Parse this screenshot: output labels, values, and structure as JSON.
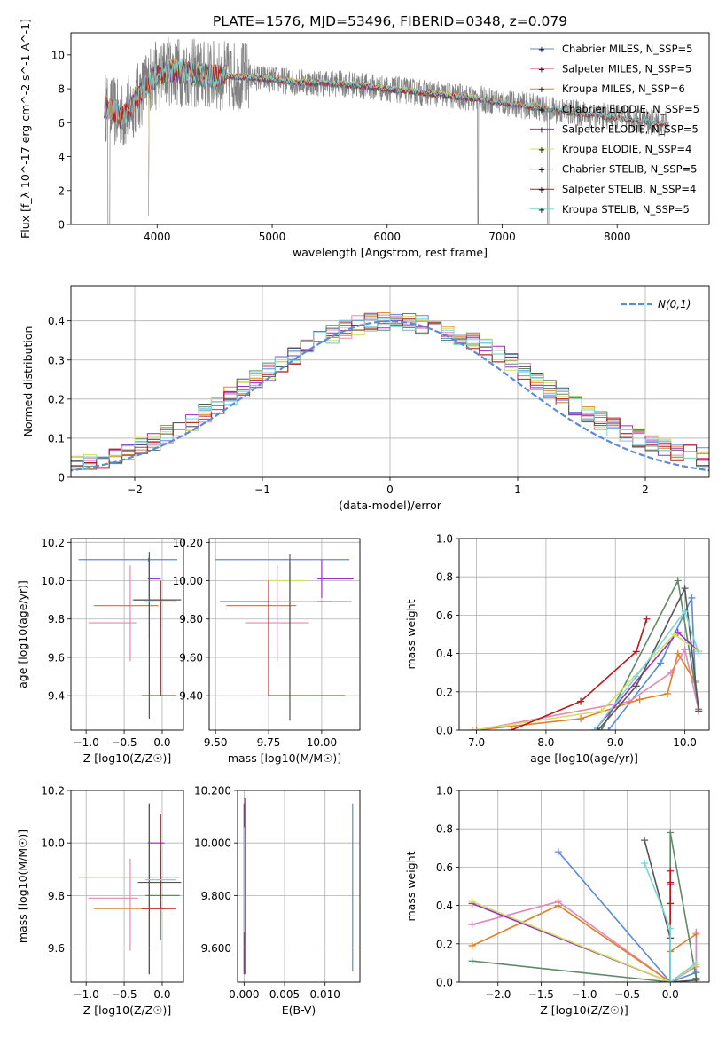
{
  "figure_title": "PLATE=1576, MJD=53496, FIBERID=0348, z=0.079",
  "colors": {
    "Chabrier MILES": "#5b8bd9",
    "Salpeter MILES": "#e487b9",
    "Kroupa MILES": "#e0812a",
    "Chabrier ELODIE": "#5e8a6a",
    "Salpeter ELODIE": "#9a2fc0",
    "Kroupa ELODIE": "#cfe060",
    "Chabrier STELIB": "#555555",
    "Salpeter STELIB": "#b51b1b",
    "Kroupa STELIB": "#7ad6d6",
    "data": "#808080",
    "normal": "#5b8bd9"
  },
  "chart_data": [
    {
      "id": "spectrum",
      "type": "line",
      "title": "PLATE=1576, MJD=53496, FIBERID=0348, z=0.079",
      "xlabel": "wavelength [Angstrom, rest frame]",
      "ylabel": "Flux [f_λ 10^-17 erg cm^-2 s^-1 A^-1]",
      "xlim": [
        3250,
        8800
      ],
      "ylim": [
        0,
        11.3
      ],
      "xticks": [
        4000,
        5000,
        6000,
        7000,
        8000
      ],
      "yticks": [
        0,
        2,
        4,
        6,
        8,
        10
      ],
      "grid": false,
      "legend": "top-right",
      "legend_entries": [
        "Chabrier MILES, N_SSP=5",
        "Salpeter MILES, N_SSP=5",
        "Kroupa MILES, N_SSP=6",
        "Chabrier ELODIE, N_SSP=5",
        "Salpeter ELODIE, N_SSP=5",
        "Kroupa ELODIE, N_SSP=4",
        "Chabrier STELIB, N_SSP=5",
        "Salpeter STELIB, N_SSP=4",
        "Kroupa STELIB, N_SSP=5"
      ],
      "model_ranges": {
        "MILES": [
          3540,
          7410
        ],
        "ELODIE": [
          3900,
          6800
        ],
        "STELIB": [
          3540,
          8450
        ]
      },
      "continuum_anchors": {
        "x": [
          3540,
          3700,
          3800,
          3950,
          4100,
          4400,
          4800,
          5200,
          5600,
          6000,
          6400,
          6800,
          7200,
          7600,
          8000,
          8450
        ],
        "y": [
          7.0,
          6.3,
          7.2,
          8.6,
          9.1,
          8.8,
          8.7,
          8.4,
          8.3,
          8.0,
          7.7,
          7.4,
          7.0,
          6.6,
          6.3,
          5.9
        ]
      }
    },
    {
      "id": "residuals",
      "type": "histogram",
      "xlabel": "(data-model)/error",
      "ylabel": "Normed distribution",
      "xlim": [
        -2.5,
        2.5
      ],
      "ylim": [
        0,
        0.49
      ],
      "xticks": [
        -2,
        -1,
        0,
        1,
        2
      ],
      "yticks": [
        0.0,
        0.1,
        0.2,
        0.3,
        0.4
      ],
      "grid": true,
      "legend": "top-right",
      "legend_entries": [
        "N(0,1)"
      ],
      "bin_width": 0.1,
      "reference_curve": {
        "name": "N(0,1)",
        "mean": 0,
        "sigma": 1
      }
    },
    {
      "id": "age-vs-Z",
      "type": "errorbar",
      "xlabel": "Z [log10(Z/Z☉)]",
      "ylabel": "age [log10(age/yr)]",
      "xlim": [
        -1.2,
        0.28
      ],
      "ylim": [
        9.22,
        10.22
      ],
      "xticks": [
        -1.0,
        -0.5,
        0.0
      ],
      "yticks": [
        9.4,
        9.6,
        9.8,
        10.0,
        10.2
      ],
      "grid": true,
      "points": [
        {
          "model": "Chabrier MILES",
          "x": -0.18,
          "xerr": [
            0.92,
            0.38
          ],
          "y": 10.11,
          "yerr": [
            0.01,
            0.01
          ]
        },
        {
          "model": "Salpeter MILES",
          "x": -0.42,
          "xerr": [
            0.55,
            0.08
          ],
          "y": 9.78,
          "yerr": [
            0.2,
            0.3
          ]
        },
        {
          "model": "Kroupa MILES",
          "x": -0.15,
          "xerr": [
            0.75,
            0.1
          ],
          "y": 9.87,
          "yerr": [
            0.0,
            0.0
          ]
        },
        {
          "model": "Chabrier ELODIE",
          "x": -0.17,
          "xerr": [
            0.22,
            0.35
          ],
          "y": 9.9,
          "yerr": [
            0.2,
            0.2
          ]
        },
        {
          "model": "Salpeter ELODIE",
          "x": -0.17,
          "xerr": [
            0.02,
            0.15
          ],
          "y": 10.01,
          "yerr": [
            0.1,
            0.1
          ]
        },
        {
          "model": "Kroupa ELODIE",
          "x": -0.17,
          "xerr": [
            0.02,
            0.02
          ],
          "y": 10.0,
          "yerr": [
            0.0,
            0.0
          ]
        },
        {
          "model": "Chabrier STELIB",
          "x": -0.17,
          "xerr": [
            0.2,
            0.42
          ],
          "y": 9.9,
          "yerr": [
            0.62,
            0.25
          ]
        },
        {
          "model": "Salpeter STELIB",
          "x": -0.02,
          "xerr": [
            0.25,
            0.2
          ],
          "y": 9.4,
          "yerr": [
            0.0,
            0.6
          ]
        },
        {
          "model": "Kroupa STELIB",
          "x": -0.07,
          "xerr": [
            0.17,
            0.25
          ],
          "y": 9.89,
          "yerr": [
            0.0,
            0.0
          ]
        }
      ]
    },
    {
      "id": "age-vs-mass",
      "type": "errorbar",
      "xlabel": "mass [log10(M/M☉)]",
      "ylabel": "",
      "xlim": [
        9.47,
        10.18
      ],
      "ylim": [
        9.22,
        10.22
      ],
      "xticks": [
        9.5,
        9.75,
        10.0
      ],
      "yticks": [
        9.4,
        9.6,
        9.8,
        10.0,
        10.2
      ],
      "grid": true,
      "points": [
        {
          "model": "Chabrier MILES",
          "x": 9.86,
          "xerr": [
            0.36,
            0.27
          ],
          "y": 10.11,
          "yerr": [
            0.0,
            0.0
          ]
        },
        {
          "model": "Salpeter MILES",
          "x": 9.79,
          "xerr": [
            0.15,
            0.15
          ],
          "y": 9.78,
          "yerr": [
            0.2,
            0.3
          ]
        },
        {
          "model": "Kroupa MILES",
          "x": 9.75,
          "xerr": [
            0.2,
            0.13
          ],
          "y": 9.87,
          "yerr": [
            0.0,
            0.0
          ]
        },
        {
          "model": "Chabrier ELODIE",
          "x": 9.85,
          "xerr": [
            0.33,
            0.2
          ],
          "y": 9.89,
          "yerr": [
            0.2,
            0.2
          ]
        },
        {
          "model": "Salpeter ELODIE",
          "x": 10.0,
          "xerr": [
            0.02,
            0.15
          ],
          "y": 10.01,
          "yerr": [
            0.1,
            0.1
          ]
        },
        {
          "model": "Kroupa ELODIE",
          "x": 9.85,
          "xerr": [
            0.1,
            0.08
          ],
          "y": 10.0,
          "yerr": [
            0.0,
            0.0
          ]
        },
        {
          "model": "Chabrier STELIB",
          "x": 9.85,
          "xerr": [
            0.33,
            0.29
          ],
          "y": 9.89,
          "yerr": [
            0.62,
            0.25
          ]
        },
        {
          "model": "Salpeter STELIB",
          "x": 9.75,
          "xerr": [
            0.0,
            0.36
          ],
          "y": 9.4,
          "yerr": [
            0.0,
            0.6
          ]
        },
        {
          "model": "Kroupa STELIB",
          "x": 9.85,
          "xerr": [
            0.1,
            0.13
          ],
          "y": 9.89,
          "yerr": [
            0.0,
            0.0
          ]
        }
      ]
    },
    {
      "id": "weight-vs-age",
      "type": "line",
      "xlabel": "age [log10(age/yr)]",
      "ylabel": "mass weight",
      "xlim": [
        6.75,
        10.35
      ],
      "ylim": [
        0,
        1.0
      ],
      "xticks": [
        7,
        8,
        9,
        10
      ],
      "yticks": [
        0.0,
        0.2,
        0.4,
        0.6,
        0.8,
        1.0
      ],
      "grid": true,
      "series": [
        {
          "model": "Chabrier MILES",
          "x": [
            8.9,
            9.65,
            10.1,
            10.15
          ],
          "y": [
            0.0,
            0.35,
            0.69,
            0.26
          ]
        },
        {
          "model": "Salpeter MILES",
          "x": [
            7.0,
            9.2,
            9.8,
            10.0,
            10.2
          ],
          "y": [
            0.0,
            0.15,
            0.3,
            0.42,
            0.1
          ]
        },
        {
          "model": "Kroupa MILES",
          "x": [
            7.0,
            8.5,
            9.35,
            9.75,
            9.9,
            10.15
          ],
          "y": [
            0.0,
            0.06,
            0.16,
            0.19,
            0.4,
            0.25
          ]
        },
        {
          "model": "Chabrier ELODIE",
          "x": [
            8.8,
            9.9,
            10.2
          ],
          "y": [
            0.0,
            0.78,
            0.11
          ]
        },
        {
          "model": "Salpeter ELODIE",
          "x": [
            8.7,
            9.9,
            10.2
          ],
          "y": [
            0.0,
            0.51,
            0.41
          ]
        },
        {
          "model": "Kroupa ELODIE",
          "x": [
            6.95,
            8.8,
            9.85,
            10.2
          ],
          "y": [
            0.0,
            0.1,
            0.5,
            0.41
          ]
        },
        {
          "model": "Chabrier STELIB",
          "x": [
            8.75,
            9.3,
            10.0,
            10.2
          ],
          "y": [
            0.0,
            0.23,
            0.74,
            0.1
          ]
        },
        {
          "model": "Salpeter STELIB",
          "x": [
            7.5,
            8.5,
            9.3,
            9.45
          ],
          "y": [
            0.0,
            0.15,
            0.41,
            0.58
          ]
        },
        {
          "model": "Kroupa STELIB",
          "x": [
            8.7,
            9.3,
            10.0,
            10.2
          ],
          "y": [
            0.0,
            0.28,
            0.62,
            0.4
          ]
        }
      ]
    },
    {
      "id": "mass-vs-Z",
      "type": "errorbar",
      "xlabel": "Z [log10(Z/Z☉)]",
      "ylabel": "mass [log10(M/M☉)]",
      "xlim": [
        -1.2,
        0.28
      ],
      "ylim": [
        9.47,
        10.2
      ],
      "xticks": [
        -1.0,
        -0.5,
        0.0
      ],
      "yticks": [
        9.6,
        9.8,
        10.0,
        10.2
      ],
      "grid": true,
      "points": [
        {
          "model": "Chabrier MILES",
          "x": -0.18,
          "xerr": [
            0.92,
            0.4
          ],
          "y": 9.87,
          "yerr": [
            0.0,
            0.0
          ]
        },
        {
          "model": "Salpeter MILES",
          "x": -0.42,
          "xerr": [
            0.55,
            0.1
          ],
          "y": 9.79,
          "yerr": [
            0.2,
            0.15
          ]
        },
        {
          "model": "Kroupa MILES",
          "x": -0.15,
          "xerr": [
            0.75,
            0.2
          ],
          "y": 9.75,
          "yerr": [
            0.0,
            0.0
          ]
        },
        {
          "model": "Chabrier ELODIE",
          "x": -0.02,
          "xerr": [
            0.2,
            0.25
          ],
          "y": 9.8,
          "yerr": [
            0.17,
            0.17
          ]
        },
        {
          "model": "Salpeter ELODIE",
          "x": -0.17,
          "xerr": [
            0.02,
            0.2
          ],
          "y": 10.0,
          "yerr": [
            0.5,
            0.15
          ]
        },
        {
          "model": "Kroupa ELODIE",
          "x": -0.14,
          "xerr": [
            0.05,
            0.1
          ],
          "y": 9.85,
          "yerr": [
            0.0,
            0.0
          ]
        },
        {
          "model": "Chabrier STELIB",
          "x": -0.17,
          "xerr": [
            0.15,
            0.42
          ],
          "y": 9.85,
          "yerr": [
            0.35,
            0.3
          ]
        },
        {
          "model": "Salpeter STELIB",
          "x": -0.02,
          "xerr": [
            0.25,
            0.2
          ],
          "y": 9.75,
          "yerr": [
            0.0,
            0.36
          ]
        },
        {
          "model": "Kroupa STELIB",
          "x": -0.07,
          "xerr": [
            0.15,
            0.25
          ],
          "y": 9.86,
          "yerr": [
            0.0,
            0.0
          ]
        }
      ]
    },
    {
      "id": "mass-vs-EBV",
      "type": "errorbar",
      "xlabel": "E(B-V)",
      "ylabel": "",
      "xlim": [
        -0.0008,
        0.0143
      ],
      "ylim": [
        9.47,
        10.2
      ],
      "xticks": [
        0.0,
        0.005,
        0.01
      ],
      "yticks": [
        9.6,
        9.8,
        10.0,
        10.2
      ],
      "grid": true,
      "points": [
        {
          "model": "Chabrier MILES",
          "x": 0.0134,
          "xerr": [
            0,
            0
          ],
          "y": 9.83,
          "yerr": [
            0.32,
            0.32
          ]
        },
        {
          "model": "Salpeter ELODIE",
          "x": 0.0001,
          "xerr": [
            0,
            0
          ],
          "y": 9.84,
          "yerr": [
            0.34,
            0.33
          ]
        },
        {
          "model": "Chabrier STELIB",
          "x": 0.0,
          "xerr": [
            0,
            0
          ],
          "y": 9.85,
          "yerr": [
            0.35,
            0.3
          ]
        },
        {
          "model": "Kroupa STELIB",
          "x": 0.0,
          "xerr": [
            0,
            0
          ],
          "y": 9.86,
          "yerr": [
            0.2,
            0.2
          ]
        }
      ]
    },
    {
      "id": "weight-vs-Z",
      "type": "line",
      "xlabel": "Z [log10(Z/Z☉)]",
      "ylabel": "mass weight",
      "xlim": [
        -2.45,
        0.45
      ],
      "ylim": [
        0,
        1.0
      ],
      "xticks": [
        -2.0,
        -1.5,
        -1.0,
        -0.5,
        0.0
      ],
      "yticks": [
        0.0,
        0.2,
        0.4,
        0.6,
        0.8,
        1.0
      ],
      "grid": true,
      "series": [
        {
          "model": "Chabrier MILES",
          "x": [
            -1.3,
            0.0,
            0.3,
            0.3
          ],
          "y": [
            0.68,
            0.0,
            0.05,
            0.26
          ]
        },
        {
          "model": "Salpeter MILES",
          "x": [
            -2.3,
            -1.3,
            0.0,
            0.3,
            0.3
          ],
          "y": [
            0.3,
            0.42,
            0.0,
            0.08,
            0.26
          ]
        },
        {
          "model": "Kroupa MILES",
          "x": [
            -2.3,
            -1.3,
            0.0,
            0.0,
            0.3
          ],
          "y": [
            0.19,
            0.4,
            0.0,
            0.16,
            0.25
          ]
        },
        {
          "model": "Chabrier ELODIE",
          "x": [
            -2.3,
            0.0,
            0.0,
            0.3
          ],
          "y": [
            0.11,
            0.0,
            0.78,
            0.02
          ]
        },
        {
          "model": "Salpeter ELODIE",
          "x": [
            -2.3,
            0.0,
            0.0
          ],
          "y": [
            0.41,
            0.0,
            0.51
          ]
        },
        {
          "model": "Kroupa ELODIE",
          "x": [
            -2.3,
            0.0,
            0.3
          ],
          "y": [
            0.42,
            0.0,
            0.09
          ]
        },
        {
          "model": "Chabrier STELIB",
          "x": [
            -0.3,
            0.0,
            0.0,
            0.3
          ],
          "y": [
            0.74,
            0.23,
            0.0,
            0.01
          ]
        },
        {
          "model": "Salpeter STELIB",
          "x": [
            0.0,
            0.0,
            0.0,
            0.0
          ],
          "y": [
            0.58,
            0.52,
            0.41,
            0.0
          ]
        },
        {
          "model": "Kroupa STELIB",
          "x": [
            -0.3,
            0.0,
            0.0,
            0.3
          ],
          "y": [
            0.62,
            0.28,
            0.0,
            0.1
          ]
        }
      ]
    }
  ]
}
